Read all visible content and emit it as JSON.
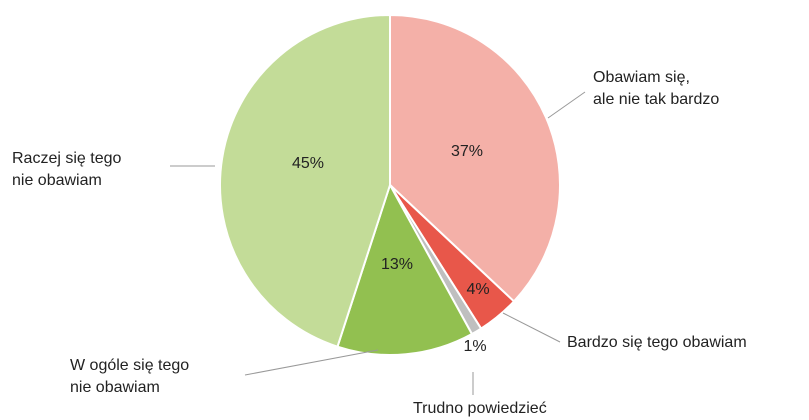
{
  "chart_data": {
    "type": "pie",
    "categories": [
      "Obawiam się,\nale nie tak bardzo",
      "Bardzo się tego obawiam",
      "Trudno powiedzieć",
      "W ogóle się tego\nnie obawiam",
      "Raczej się tego\nnie obawiam"
    ],
    "values": [
      37,
      4,
      1,
      13,
      45
    ],
    "value_labels": [
      "37%",
      "4%",
      "1%",
      "13%",
      "45%"
    ],
    "colors": [
      "#f4b0a8",
      "#e8574a",
      "#bfbfbf",
      "#92c050",
      "#c3dc98"
    ]
  }
}
